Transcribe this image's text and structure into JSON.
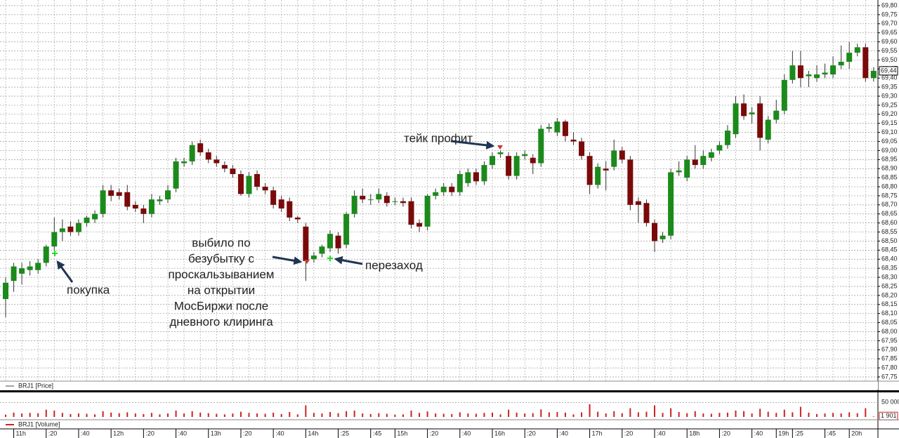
{
  "chart_data": {
    "type": "candlestick",
    "price_legend": "BRJ1 [Price]",
    "volume_legend": "BRJ1 [Volume]",
    "last_price_label": "69,44",
    "volume_last_label": "1 901",
    "up_color": "#1b8a1b",
    "down_color": "#7a0a0a",
    "volume_color": "#cc2222",
    "grid": true,
    "ylim": [
      67.75,
      69.8
    ],
    "yticks": [
      {
        "value": 67.75,
        "label": "67,75"
      },
      {
        "value": 67.8,
        "label": "67,80"
      },
      {
        "value": 67.85,
        "label": "67,85"
      },
      {
        "value": 67.9,
        "label": "67,90"
      },
      {
        "value": 67.95,
        "label": "67,95"
      },
      {
        "value": 68.0,
        "label": "68,00"
      },
      {
        "value": 68.05,
        "label": "68,05"
      },
      {
        "value": 68.1,
        "label": "68,10"
      },
      {
        "value": 68.15,
        "label": "68,15"
      },
      {
        "value": 68.2,
        "label": "68,20"
      },
      {
        "value": 68.25,
        "label": "68,25"
      },
      {
        "value": 68.3,
        "label": "68,30"
      },
      {
        "value": 68.35,
        "label": "68,35"
      },
      {
        "value": 68.4,
        "label": "68,40"
      },
      {
        "value": 68.45,
        "label": "68,45"
      },
      {
        "value": 68.5,
        "label": "68,50"
      },
      {
        "value": 68.55,
        "label": "68,55"
      },
      {
        "value": 68.6,
        "label": "68,60"
      },
      {
        "value": 68.65,
        "label": "68,65"
      },
      {
        "value": 68.7,
        "label": "68,70"
      },
      {
        "value": 68.75,
        "label": "68,75"
      },
      {
        "value": 68.8,
        "label": "68,80"
      },
      {
        "value": 68.85,
        "label": "68,85"
      },
      {
        "value": 68.9,
        "label": "68,90"
      },
      {
        "value": 68.95,
        "label": "68,95"
      },
      {
        "value": 69.0,
        "label": "69,00"
      },
      {
        "value": 69.05,
        "label": "69,05"
      },
      {
        "value": 69.1,
        "label": "69,10"
      },
      {
        "value": 69.15,
        "label": "69,15"
      },
      {
        "value": 69.2,
        "label": "69,20"
      },
      {
        "value": 69.25,
        "label": "69,25"
      },
      {
        "value": 69.3,
        "label": "69,30"
      },
      {
        "value": 69.35,
        "label": "69,35"
      },
      {
        "value": 69.4,
        "label": "69,40"
      },
      {
        "value": 69.45,
        "label": "69,45"
      },
      {
        "value": 69.5,
        "label": "69,50"
      },
      {
        "value": 69.55,
        "label": "69,55"
      },
      {
        "value": 69.6,
        "label": "69,60"
      },
      {
        "value": 69.65,
        "label": "69,65"
      },
      {
        "value": 69.7,
        "label": "69,70"
      },
      {
        "value": 69.75,
        "label": "69,75"
      },
      {
        "value": 69.8,
        "label": "69,80"
      }
    ],
    "volume_ylim": [
      0,
      77500
    ],
    "volume_yticks": [
      {
        "value": 50000,
        "label": "50 000"
      }
    ],
    "categories": [
      null,
      "11h",
      null,
      null,
      null,
      ":20",
      null,
      null,
      null,
      ":40",
      null,
      null,
      null,
      "12h",
      null,
      null,
      null,
      ":20",
      null,
      null,
      null,
      ":40",
      null,
      null,
      null,
      "13h",
      null,
      null,
      null,
      ":20",
      null,
      null,
      null,
      ":40",
      null,
      null,
      null,
      "14h",
      null,
      null,
      null,
      ":25",
      null,
      null,
      null,
      ":45",
      null,
      null,
      "15h",
      null,
      null,
      null,
      ":20",
      null,
      null,
      null,
      ":40",
      null,
      null,
      null,
      "16h",
      null,
      null,
      null,
      ":20",
      null,
      null,
      null,
      ":40",
      null,
      null,
      null,
      "17h",
      null,
      null,
      null,
      ":20",
      null,
      null,
      null,
      ":40",
      null,
      null,
      null,
      "18h",
      null,
      null,
      null,
      ":20",
      null,
      null,
      null,
      ":40",
      null,
      null,
      "19h",
      null,
      ":25",
      null,
      null,
      null,
      ":45",
      null,
      null,
      "20h",
      null,
      null,
      null
    ],
    "open": [
      68.18,
      68.28,
      68.32,
      68.34,
      68.34,
      68.38,
      68.47,
      68.55,
      68.58,
      68.55,
      68.6,
      68.62,
      68.65,
      68.78,
      68.77,
      68.77,
      68.7,
      68.68,
      68.65,
      68.72,
      68.73,
      68.79,
      68.93,
      68.94,
      69.04,
      68.99,
      68.95,
      68.92,
      68.9,
      68.87,
      68.76,
      68.87,
      68.8,
      68.78,
      68.73,
      68.72,
      68.63,
      68.58,
      68.4,
      68.43,
      68.46,
      68.53,
      68.48,
      68.65,
      68.75,
      68.73,
      68.73,
      68.75,
      68.72,
      68.72,
      68.72,
      68.6,
      68.58,
      68.75,
      68.77,
      68.8,
      68.77,
      68.82,
      68.88,
      68.83,
      68.92,
      68.98,
      68.97,
      68.86,
      68.97,
      68.96,
      68.93,
      69.12,
      69.1,
      69.16,
      69.06,
      69.05,
      68.97,
      68.81,
      68.9,
      68.91,
      69.0,
      68.95,
      68.72,
      68.71,
      68.6,
      68.51,
      68.53,
      68.88,
      68.85,
      68.95,
      68.92,
      68.96,
      69.0,
      69.03,
      69.09,
      69.26,
      69.2,
      69.26,
      69.06,
      69.17,
      69.22,
      69.39,
      69.47,
      69.41,
      69.4,
      69.42,
      69.42,
      69.47,
      69.49,
      69.54,
      69.57,
      69.4
    ],
    "high": [
      68.3,
      68.38,
      68.38,
      68.39,
      68.4,
      68.48,
      68.63,
      68.62,
      68.61,
      68.62,
      68.64,
      68.67,
      68.81,
      68.81,
      68.79,
      68.81,
      68.72,
      68.7,
      68.76,
      68.75,
      68.81,
      68.96,
      68.96,
      69.05,
      69.06,
      69.01,
      68.97,
      68.94,
      68.92,
      68.89,
      68.88,
      68.89,
      68.82,
      68.8,
      68.75,
      68.74,
      68.64,
      68.6,
      68.44,
      68.48,
      68.56,
      68.55,
      68.66,
      68.78,
      68.79,
      68.76,
      68.79,
      68.77,
      68.74,
      68.74,
      68.74,
      68.62,
      68.76,
      68.79,
      68.82,
      68.82,
      68.89,
      68.9,
      68.9,
      68.94,
      68.99,
      69.0,
      68.99,
      68.99,
      69.0,
      68.98,
      69.14,
      69.15,
      69.18,
      69.17,
      69.1,
      69.07,
      68.99,
      68.93,
      68.94,
      69.06,
      69.02,
      68.97,
      68.74,
      68.73,
      68.62,
      68.55,
      68.9,
      68.94,
      68.97,
      69.03,
      69.0,
      69.01,
      69.05,
      69.14,
      69.3,
      69.31,
      69.24,
      69.3,
      69.19,
      69.28,
      69.42,
      69.55,
      69.55,
      69.44,
      69.47,
      69.48,
      69.52,
      69.58,
      69.6,
      69.59,
      69.59,
      69.46
    ],
    "low": [
      68.08,
      68.22,
      68.26,
      68.31,
      68.32,
      68.36,
      68.45,
      68.5,
      68.53,
      68.53,
      68.58,
      68.6,
      68.63,
      68.72,
      68.73,
      68.67,
      68.66,
      68.6,
      68.63,
      68.7,
      68.71,
      68.77,
      68.91,
      68.92,
      68.97,
      68.93,
      68.91,
      68.88,
      68.85,
      68.75,
      68.74,
      68.78,
      68.76,
      68.68,
      68.66,
      68.61,
      68.6,
      68.28,
      68.38,
      68.41,
      68.44,
      68.43,
      68.46,
      68.63,
      68.71,
      68.7,
      68.71,
      68.69,
      68.7,
      68.69,
      68.57,
      68.55,
      68.56,
      68.73,
      68.75,
      68.75,
      68.75,
      68.8,
      68.81,
      68.81,
      68.9,
      68.96,
      68.84,
      68.84,
      68.95,
      68.87,
      68.91,
      69.1,
      69.08,
      69.05,
      69.03,
      68.95,
      68.76,
      68.79,
      68.78,
      68.89,
      68.93,
      68.67,
      68.6,
      68.58,
      68.44,
      68.49,
      68.51,
      68.86,
      68.83,
      68.9,
      68.9,
      68.94,
      68.98,
      69.01,
      69.07,
      69.17,
      69.15,
      69.0,
      69.04,
      69.15,
      69.2,
      69.37,
      69.35,
      69.35,
      69.38,
      69.4,
      69.4,
      69.45,
      69.45,
      69.52,
      69.38,
      69.38
    ],
    "close": [
      68.27,
      68.36,
      68.35,
      68.36,
      68.38,
      68.47,
      68.55,
      68.57,
      68.55,
      68.6,
      68.63,
      68.65,
      68.78,
      68.75,
      68.75,
      68.69,
      68.68,
      68.65,
      68.73,
      68.73,
      68.78,
      68.94,
      68.94,
      69.03,
      68.99,
      68.95,
      68.93,
      68.9,
      68.87,
      68.76,
      68.86,
      68.8,
      68.78,
      68.7,
      68.68,
      68.63,
      68.62,
      68.39,
      68.42,
      68.47,
      68.54,
      68.46,
      68.65,
      68.75,
      68.73,
      68.73,
      68.76,
      68.71,
      68.72,
      68.71,
      68.59,
      68.58,
      68.75,
      68.77,
      68.8,
      68.77,
      68.87,
      68.88,
      68.83,
      68.92,
      68.97,
      68.99,
      68.86,
      68.97,
      68.98,
      68.93,
      69.12,
      69.13,
      69.16,
      69.08,
      69.05,
      68.97,
      68.81,
      68.91,
      68.89,
      69.0,
      68.95,
      68.7,
      68.7,
      68.6,
      68.5,
      68.53,
      68.88,
      68.89,
      68.95,
      68.92,
      68.97,
      68.99,
      69.03,
      69.11,
      69.26,
      69.19,
      69.21,
      69.07,
      69.17,
      69.22,
      69.39,
      69.47,
      69.4,
      69.42,
      69.42,
      69.43,
      69.47,
      69.49,
      69.54,
      69.57,
      69.4,
      69.44
    ],
    "volume": [
      8000,
      15000,
      12000,
      14000,
      13000,
      25000,
      22000,
      14000,
      10000,
      12000,
      11000,
      9000,
      20000,
      15000,
      13000,
      16000,
      12000,
      10000,
      14000,
      9000,
      12000,
      22000,
      12000,
      20000,
      15000,
      13000,
      11000,
      9000,
      12000,
      18000,
      14000,
      12000,
      11000,
      15000,
      10000,
      17000,
      9000,
      40000,
      14000,
      12000,
      17000,
      13000,
      20000,
      22000,
      12000,
      10000,
      13000,
      11000,
      8000,
      9000,
      22000,
      14000,
      19000,
      12000,
      11000,
      10000,
      16000,
      12000,
      11000,
      14000,
      15000,
      9000,
      25000,
      15000,
      12000,
      13000,
      26000,
      16000,
      17000,
      15000,
      9000,
      16000,
      44000,
      18000,
      12000,
      20000,
      13000,
      30000,
      16000,
      18000,
      40000,
      14000,
      30000,
      17000,
      13000,
      20000,
      12000,
      11000,
      14000,
      15000,
      22000,
      20000,
      12000,
      28000,
      18000,
      14000,
      25000,
      16000,
      35000,
      15000,
      10000,
      12000,
      14000,
      12000,
      16000,
      13000,
      30000,
      1901
    ],
    "annotations": [
      {
        "text": "тейк профит"
      },
      {
        "text": "покупка"
      },
      {
        "lines": [
          "выбило по",
          "безубытку с",
          "проскальзыванием",
          "на открытии",
          "МосБиржи после",
          "дневного клиринга"
        ]
      },
      {
        "text": "перезаход"
      }
    ]
  }
}
